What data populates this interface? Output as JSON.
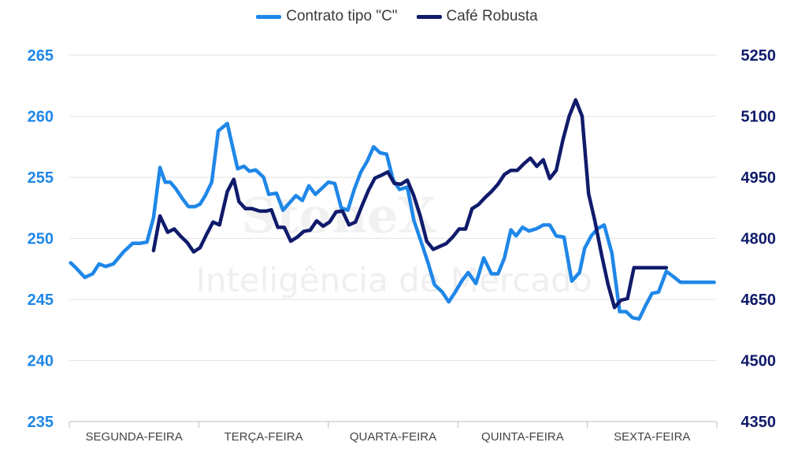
{
  "chart_data": {
    "type": "line",
    "legend_position": "top-center",
    "grid": true,
    "colors": {
      "contrato_c": "#1f87e8",
      "robusta": "#101b6b",
      "grid": "#e3e3e3",
      "axis": "#bdbdbd"
    },
    "categories": [
      "SEGUNDA-FEIRA",
      "TERÇA-FEIRA",
      "QUARTA-FEIRA",
      "QUINTA-FEIRA",
      "SEXTA-FEIRA"
    ],
    "y_left": {
      "min": 235,
      "max": 265,
      "ticks": [
        "235",
        "240",
        "245",
        "250",
        "255",
        "260",
        "265"
      ]
    },
    "y_right": {
      "min": 4350,
      "max": 5250,
      "ticks": [
        "4350",
        "4500",
        "4650",
        "4800",
        "4950",
        "5100",
        "5250"
      ]
    },
    "x_range": [
      0,
      5
    ],
    "series": [
      {
        "name": "Contrato tipo \"C\"",
        "axis": "left",
        "x": [
          0.01,
          0.05,
          0.12,
          0.18,
          0.23,
          0.28,
          0.34,
          0.42,
          0.49,
          0.55,
          0.6,
          0.65,
          0.7,
          0.74,
          0.78,
          0.82,
          0.87,
          0.92,
          0.97,
          1.01,
          1.05,
          1.1,
          1.15,
          1.22,
          1.25,
          1.3,
          1.35,
          1.39,
          1.44,
          1.5,
          1.54,
          1.6,
          1.65,
          1.7,
          1.75,
          1.8,
          1.85,
          1.9,
          1.95,
          2.0,
          2.05,
          2.1,
          2.15,
          2.2,
          2.25,
          2.3,
          2.35,
          2.4,
          2.45,
          2.5,
          2.55,
          2.61,
          2.66,
          2.72,
          2.77,
          2.82,
          2.88,
          2.93,
          2.98,
          3.03,
          3.08,
          3.14,
          3.2,
          3.26,
          3.31,
          3.36,
          3.41,
          3.45,
          3.5,
          3.55,
          3.61,
          3.66,
          3.71,
          3.76,
          3.82,
          3.88,
          3.94,
          3.98,
          4.03,
          4.08,
          4.13,
          4.19,
          4.25,
          4.3,
          4.35,
          4.4,
          4.45,
          4.5,
          4.55,
          4.61,
          4.66,
          4.72,
          4.77,
          4.83,
          4.88,
          4.93,
          4.98
        ],
        "values": [
          248.0,
          247.6,
          246.8,
          247.1,
          247.9,
          247.7,
          247.9,
          248.9,
          249.6,
          249.6,
          249.7,
          251.7,
          255.8,
          254.6,
          254.6,
          254.1,
          253.3,
          252.6,
          252.6,
          252.8,
          253.5,
          254.6,
          258.8,
          259.4,
          258.0,
          255.7,
          255.9,
          255.5,
          255.6,
          255.0,
          253.6,
          253.7,
          252.3,
          252.9,
          253.5,
          253.1,
          254.3,
          253.6,
          254.1,
          254.6,
          254.5,
          252.5,
          252.3,
          254.0,
          255.4,
          256.3,
          257.5,
          257.0,
          256.9,
          254.8,
          254.0,
          254.2,
          251.5,
          249.6,
          248.0,
          246.2,
          245.6,
          244.8,
          245.6,
          246.5,
          247.2,
          246.3,
          248.4,
          247.1,
          247.1,
          248.4,
          250.7,
          250.2,
          250.9,
          250.6,
          250.8,
          251.1,
          251.1,
          250.2,
          250.1,
          246.5,
          247.2,
          249.2,
          250.2,
          250.8,
          251.1,
          248.8,
          244.0,
          244.0,
          243.5,
          243.4,
          244.5,
          245.5,
          245.6,
          247.3,
          246.9,
          246.4,
          246.4,
          246.4,
          246.4,
          246.4,
          246.4
        ]
      },
      {
        "name": "Café Robusta",
        "axis": "right",
        "x": [
          0.65,
          0.7,
          0.76,
          0.81,
          0.86,
          0.91,
          0.96,
          1.01,
          1.06,
          1.11,
          1.16,
          1.22,
          1.27,
          1.31,
          1.36,
          1.41,
          1.47,
          1.52,
          1.56,
          1.61,
          1.66,
          1.71,
          1.76,
          1.81,
          1.86,
          1.91,
          1.96,
          2.01,
          2.06,
          2.11,
          2.16,
          2.21,
          2.26,
          2.31,
          2.36,
          2.41,
          2.46,
          2.51,
          2.56,
          2.61,
          2.66,
          2.71,
          2.76,
          2.81,
          2.86,
          2.91,
          2.96,
          3.01,
          3.06,
          3.11,
          3.16,
          3.21,
          3.26,
          3.31,
          3.36,
          3.41,
          3.46,
          3.51,
          3.56,
          3.61,
          3.66,
          3.71,
          3.76,
          3.81,
          3.86,
          3.91,
          3.96,
          4.01,
          4.06,
          4.11,
          4.16,
          4.21,
          4.26,
          4.31,
          4.36,
          4.41,
          4.46,
          4.51,
          4.56,
          4.61
        ],
        "values": [
          4770,
          4855,
          4815,
          4823,
          4805,
          4790,
          4767,
          4777,
          4810,
          4840,
          4833,
          4915,
          4945,
          4890,
          4873,
          4873,
          4867,
          4867,
          4870,
          4827,
          4827,
          4793,
          4803,
          4817,
          4820,
          4843,
          4830,
          4840,
          4865,
          4867,
          4833,
          4840,
          4880,
          4918,
          4948,
          4955,
          4963,
          4935,
          4933,
          4943,
          4905,
          4855,
          4793,
          4773,
          4780,
          4787,
          4803,
          4823,
          4823,
          4873,
          4883,
          4900,
          4915,
          4933,
          4957,
          4967,
          4967,
          4983,
          4997,
          4977,
          4993,
          4947,
          4967,
          5040,
          5100,
          5140,
          5100,
          4910,
          4840,
          4760,
          4687,
          4630,
          4648,
          4652,
          4728,
          4728,
          4728,
          4728,
          4728,
          4728
        ]
      }
    ],
    "watermark": {
      "brand": "StoneX",
      "subtitle": "Inteligência de Mercado"
    }
  }
}
